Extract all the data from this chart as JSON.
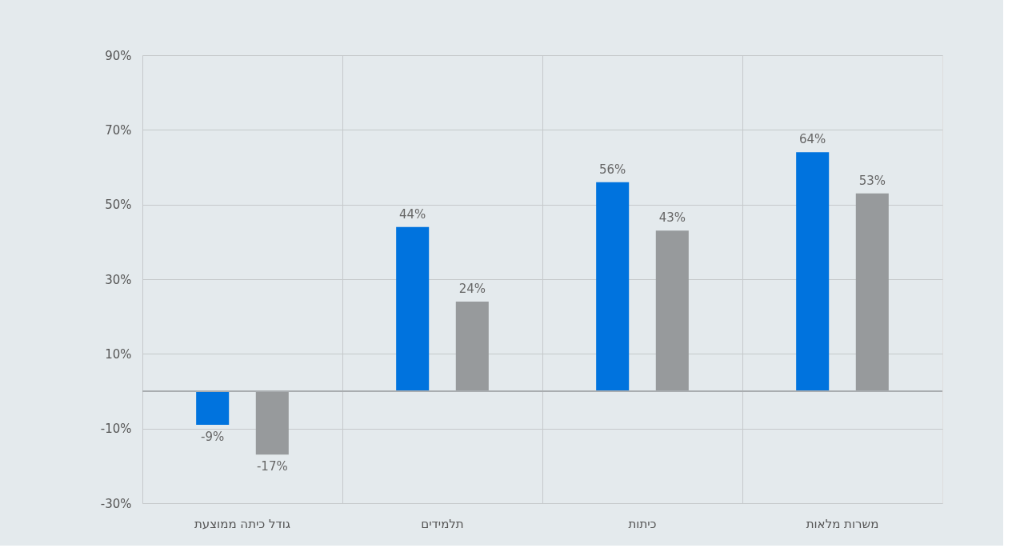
{
  "chart_data": {
    "type": "bar",
    "categories": [
      "גודל כיתה ממוצעת",
      "תלמידים",
      "כיתות",
      "משרות מלאות"
    ],
    "series": [
      {
        "color": "#0073de",
        "values": [
          -9,
          44,
          56,
          64
        ],
        "value_labels": [
          "-9%",
          "44%",
          "56%",
          "64%"
        ]
      },
      {
        "color": "#979a9c",
        "values": [
          -17,
          24,
          43,
          53
        ],
        "value_labels": [
          "-17%",
          "24%",
          "43%",
          "53%"
        ]
      }
    ],
    "ylim": [
      -30,
      90
    ],
    "yticks": [
      {
        "value": -30,
        "label": "-30%"
      },
      {
        "value": -10,
        "label": "-10%"
      },
      {
        "value": 10,
        "label": "10%"
      },
      {
        "value": 30,
        "label": "30%"
      },
      {
        "value": 50,
        "label": "50%"
      },
      {
        "value": 70,
        "label": "70%"
      },
      {
        "value": 90,
        "label": "90%"
      }
    ],
    "ref_lines": [
      {
        "axis": "y",
        "value": 0,
        "color": "#a9adb0"
      }
    ],
    "grid": true,
    "legend": false
  }
}
